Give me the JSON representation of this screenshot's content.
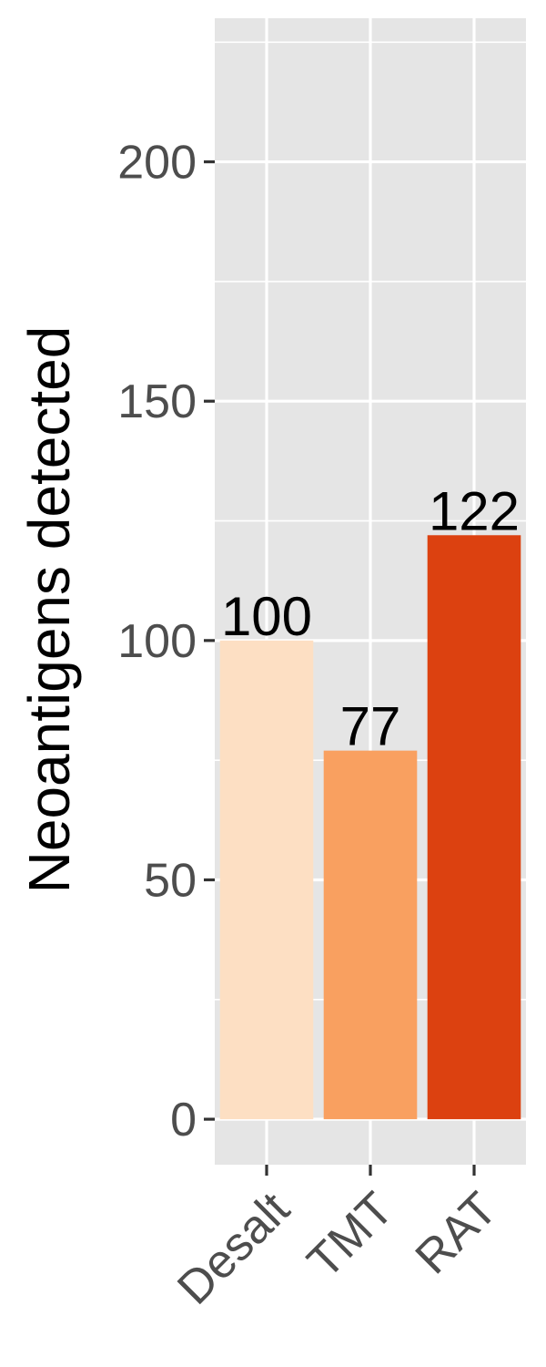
{
  "chart_data": {
    "type": "bar",
    "categories": [
      "Desalt",
      "TMT",
      "RAT"
    ],
    "values": [
      100,
      77,
      122
    ],
    "value_labels": [
      "100",
      "77",
      "122"
    ],
    "title": "",
    "xlabel": "",
    "ylabel": "Neoantigens detected",
    "ylim": [
      -9.5,
      230
    ],
    "y_ticks": [
      0,
      50,
      100,
      150,
      200
    ],
    "y_tick_labels": [
      "0",
      "50",
      "100",
      "150",
      "200"
    ],
    "y_minor_gridlines": [
      25,
      75,
      125,
      175,
      225
    ],
    "grid": true,
    "legend": "none",
    "x_tick_label_rotation": "45 degrees",
    "colors": {
      "bars": [
        "#fddfc3",
        "#f9a060",
        "#dc4110"
      ],
      "panel_background": "#e5e5e5",
      "gridline": "#ffffff",
      "tick_text": "#4d4d4d",
      "tick_mark": "#333333",
      "title_text": "#000000"
    }
  }
}
